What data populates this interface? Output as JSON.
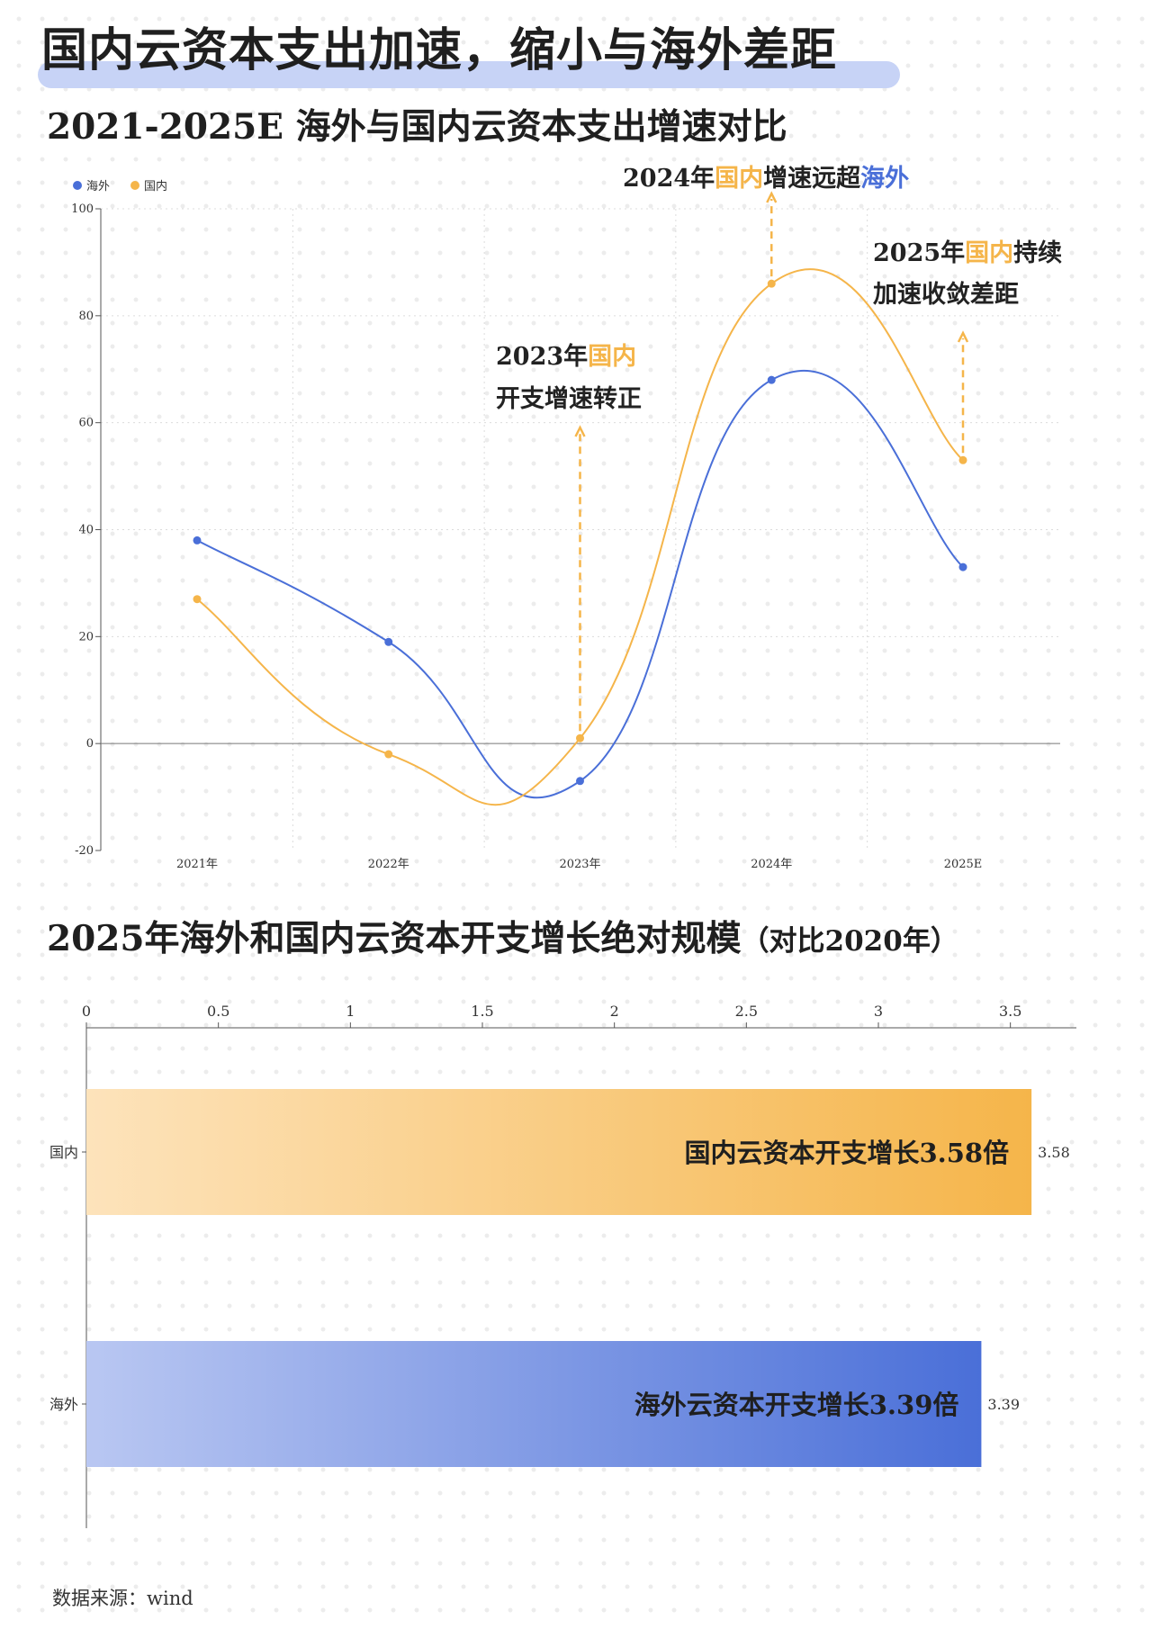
{
  "title": "国内云资本支出加速，缩小与海外差距",
  "chart1_title": "2021-2025E 海外与国内云资本支出增速对比",
  "chart2_title": "2025年海外和国内云资本开支增长绝对规模",
  "chart2_title_note": "（对比2020年）",
  "source": "数据来源：wind",
  "colors": {
    "overseas": "#4a6fd8",
    "domestic": "#f5b54a",
    "title_highlight": "#c7d3f6"
  },
  "chart_data": [
    {
      "type": "line",
      "categories": [
        "2021年",
        "2022年",
        "2023年",
        "2024年",
        "2025E"
      ],
      "series": [
        {
          "name": "海外",
          "values": [
            38,
            19,
            -7,
            68,
            33
          ]
        },
        {
          "name": "国内",
          "values": [
            27,
            -2,
            1,
            86,
            53
          ]
        }
      ],
      "ylim": [
        -20,
        100
      ],
      "yticks": [
        -20,
        0,
        20,
        40,
        60,
        80,
        100
      ],
      "grid": true,
      "legend": "top-left",
      "annotations": [
        {
          "category": "2023年",
          "lines": [
            [
              {
                "t": "2023年",
                "c": "dark"
              },
              {
                "t": "国内",
                "c": "domestic"
              }
            ],
            [
              {
                "t": "开支增速转正",
                "c": "dark"
              }
            ]
          ]
        },
        {
          "category": "2024年",
          "lines": [
            [
              {
                "t": "2024年",
                "c": "dark"
              },
              {
                "t": "国内",
                "c": "domestic"
              },
              {
                "t": "增速远超",
                "c": "dark"
              },
              {
                "t": "海外",
                "c": "overseas"
              }
            ]
          ]
        },
        {
          "category": "2025E",
          "lines": [
            [
              {
                "t": "2025年",
                "c": "dark"
              },
              {
                "t": "国内",
                "c": "domestic"
              },
              {
                "t": "持续",
                "c": "dark"
              }
            ],
            [
              {
                "t": "加速收敛差距",
                "c": "dark"
              }
            ]
          ]
        }
      ]
    },
    {
      "type": "bar",
      "orientation": "horizontal",
      "categories": [
        "国内",
        "海外"
      ],
      "values": [
        3.58,
        3.39
      ],
      "bar_labels": [
        "国内云资本开支增长3.58倍",
        "海外云资本开支增长3.39倍"
      ],
      "value_labels": [
        "3.58",
        "3.39"
      ],
      "xlim": [
        0,
        3.75
      ],
      "xticks": [
        "0",
        "0.5",
        "1",
        "1.5",
        "2",
        "2.5",
        "3",
        "3.5"
      ]
    }
  ]
}
